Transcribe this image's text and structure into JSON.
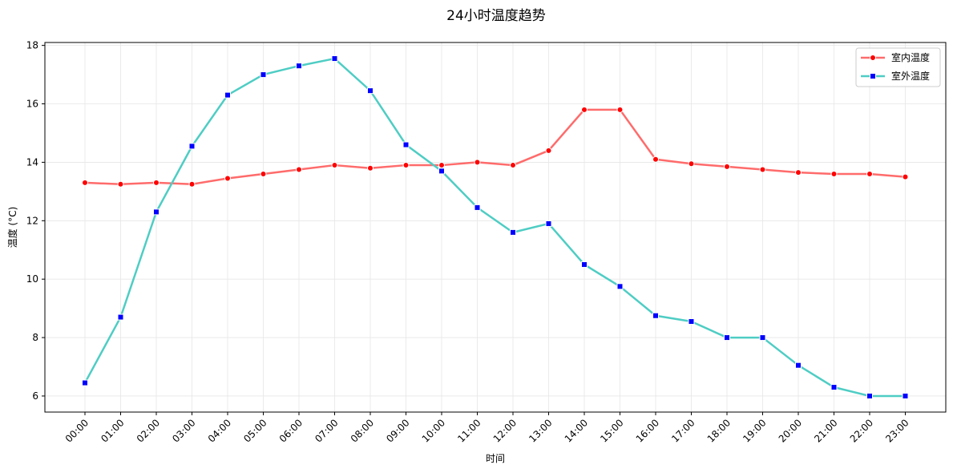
{
  "chart_data": {
    "type": "line",
    "title": "24小时温度趋势",
    "xlabel": "时间",
    "ylabel": "温度 (°C)",
    "categories": [
      "00:00",
      "01:00",
      "02:00",
      "03:00",
      "04:00",
      "05:00",
      "06:00",
      "07:00",
      "08:00",
      "09:00",
      "10:00",
      "11:00",
      "12:00",
      "13:00",
      "14:00",
      "15:00",
      "16:00",
      "17:00",
      "18:00",
      "19:00",
      "20:00",
      "21:00",
      "22:00",
      "23:00"
    ],
    "ylim": [
      5.45,
      18.1
    ],
    "yticks": [
      6,
      8,
      10,
      12,
      14,
      16,
      18
    ],
    "grid": true,
    "legend_position": "top-right",
    "series": [
      {
        "name": "室内温度",
        "color": "#ff6b6b",
        "marker_color": "#ff0000",
        "marker": "circle",
        "values": [
          13.3,
          13.25,
          13.3,
          13.25,
          13.45,
          13.6,
          13.75,
          13.9,
          13.8,
          13.9,
          13.9,
          14.0,
          13.9,
          14.4,
          15.8,
          15.8,
          14.1,
          13.95,
          13.85,
          13.75,
          13.65,
          13.6,
          13.6,
          13.5
        ]
      },
      {
        "name": "室外温度",
        "color": "#4ecdc4",
        "marker_color": "#0000ff",
        "marker": "square",
        "values": [
          6.45,
          8.7,
          12.3,
          14.55,
          16.3,
          17.0,
          17.3,
          17.55,
          16.45,
          14.6,
          13.7,
          12.45,
          11.6,
          11.9,
          10.5,
          9.75,
          8.75,
          8.55,
          8.0,
          8.0,
          7.05,
          6.3,
          6.0,
          6.0
        ]
      }
    ]
  }
}
